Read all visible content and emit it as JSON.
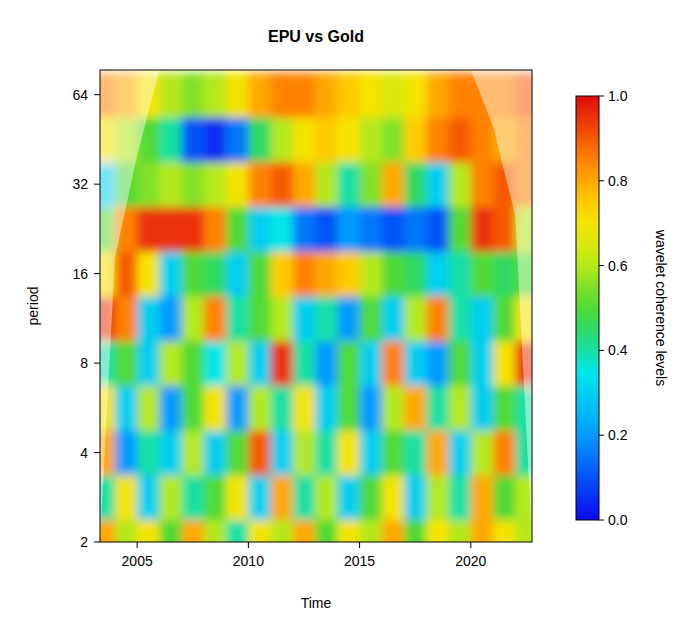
{
  "chart_data": {
    "type": "heatmap",
    "title": "EPU vs Gold",
    "x_label": "Time",
    "y_label": "period",
    "log": "y",
    "xlim": [
      2003.33,
      2022.75
    ],
    "xticks": [
      2005,
      2010,
      2015,
      2020
    ],
    "ylim": [
      2,
      77.5
    ],
    "yticks": [
      2,
      4,
      8,
      16,
      32,
      64
    ],
    "x": [
      2003,
      2004,
      2005,
      2006,
      2007,
      2008,
      2009,
      2010,
      2011,
      2012,
      2013,
      2014,
      2015,
      2016,
      2017,
      2018,
      2019,
      2020,
      2021,
      2022
    ],
    "y": [
      2,
      2.83,
      4,
      5.66,
      8,
      11.31,
      16,
      22.63,
      32,
      45.25,
      64
    ],
    "values": [
      [
        0.8,
        0.6,
        0.7,
        0.5,
        0.8,
        0.6,
        0.4,
        0.7,
        0.6,
        0.8,
        0.5,
        0.7,
        0.6,
        0.8,
        0.5,
        0.7,
        0.6,
        0.8,
        0.7,
        0.6
      ],
      [
        0.4,
        0.7,
        0.3,
        0.6,
        0.4,
        0.5,
        0.7,
        0.3,
        0.8,
        0.4,
        0.6,
        0.3,
        0.5,
        0.7,
        0.3,
        0.6,
        0.4,
        0.8,
        0.5,
        0.6
      ],
      [
        0.8,
        0.2,
        0.4,
        0.3,
        0.6,
        0.3,
        0.5,
        0.9,
        0.3,
        0.6,
        0.4,
        0.7,
        0.3,
        0.5,
        0.4,
        0.8,
        0.3,
        0.6,
        0.85,
        0.4
      ],
      [
        0.7,
        0.3,
        0.6,
        0.2,
        0.5,
        0.7,
        0.2,
        0.6,
        0.4,
        0.7,
        0.3,
        0.5,
        0.2,
        0.6,
        0.8,
        0.4,
        0.6,
        0.3,
        0.5,
        0.4
      ],
      [
        0.4,
        0.5,
        0.3,
        0.6,
        0.5,
        0.35,
        0.6,
        0.3,
        0.95,
        0.4,
        0.2,
        0.5,
        0.3,
        0.85,
        0.3,
        0.2,
        0.5,
        0.3,
        0.7,
        0.95
      ],
      [
        0.95,
        0.85,
        0.3,
        0.2,
        0.6,
        0.85,
        0.4,
        0.5,
        0.6,
        0.3,
        0.4,
        0.2,
        0.5,
        0.3,
        0.6,
        0.85,
        0.4,
        0.3,
        0.5,
        0.7
      ],
      [
        0.7,
        0.9,
        0.7,
        0.3,
        0.5,
        0.45,
        0.3,
        0.5,
        0.75,
        0.85,
        0.8,
        0.75,
        0.6,
        0.5,
        0.45,
        0.3,
        0.4,
        0.5,
        0.45,
        0.5
      ],
      [
        0.5,
        0.85,
        0.95,
        0.95,
        0.95,
        0.85,
        0.5,
        0.3,
        0.35,
        0.15,
        0.1,
        0.2,
        0.15,
        0.1,
        0.15,
        0.1,
        0.5,
        0.95,
        0.9,
        0.6
      ],
      [
        0.3,
        0.5,
        0.55,
        0.6,
        0.55,
        0.6,
        0.7,
        0.85,
        0.9,
        0.8,
        0.6,
        0.4,
        0.55,
        0.8,
        0.45,
        0.3,
        0.6,
        0.85,
        0.9,
        0.85
      ],
      [
        0.7,
        0.6,
        0.5,
        0.4,
        0.1,
        0.05,
        0.15,
        0.45,
        0.6,
        0.7,
        0.75,
        0.7,
        0.6,
        0.55,
        0.75,
        0.85,
        0.9,
        0.85,
        0.8,
        0.85
      ],
      [
        0.85,
        0.8,
        0.7,
        0.6,
        0.55,
        0.6,
        0.7,
        0.8,
        0.85,
        0.85,
        0.8,
        0.75,
        0.7,
        0.65,
        0.7,
        0.8,
        0.85,
        0.85,
        0.85,
        0.9
      ]
    ],
    "coi": {
      "x": [
        2003.33,
        2004,
        2005,
        2006,
        2020,
        2021,
        2022,
        2022.75
      ],
      "period": [
        2,
        18,
        40,
        77.5,
        77.5,
        50,
        25,
        2
      ]
    },
    "colorbar": {
      "range": [
        0,
        1
      ],
      "ticks": [
        {
          "value": 0,
          "label": "0.0"
        },
        0.2,
        0.4,
        0.6,
        0.8,
        {
          "value": 1,
          "label": "1.0"
        }
      ],
      "label": "wavelet coherence levels"
    }
  }
}
